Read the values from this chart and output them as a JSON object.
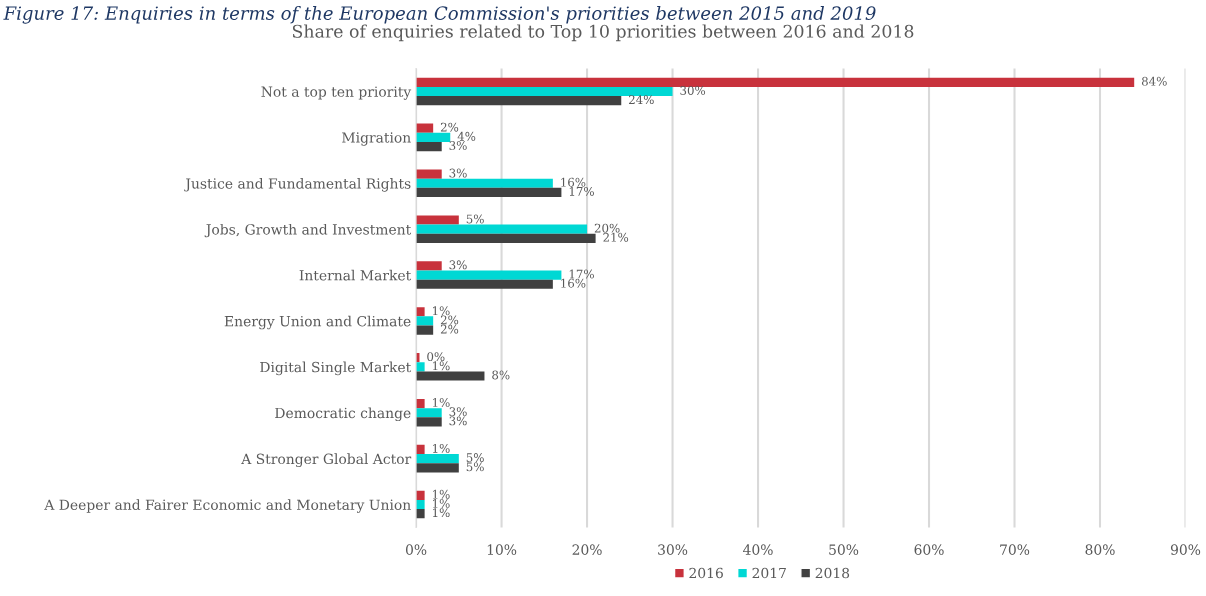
{
  "chart_data": {
    "type": "bar",
    "orientation": "horizontal",
    "title": "Share of enquiries related to Top 10 priorities between 2016 and 2018",
    "annotations": [
      "Figure 17: Enquiries in terms of the European Commission's priorities between 2015 and 2019"
    ],
    "categories": [
      "Not a top ten priority",
      "Migration",
      "Justice and Fundamental Rights",
      "Jobs, Growth and Investment",
      "Internal Market",
      "Energy Union and Climate",
      "Digital Single Market",
      "Democratic change",
      "A Stronger Global Actor",
      "A Deeper and Fairer Economic and Monetary Union"
    ],
    "series": [
      {
        "name": "2016",
        "color": "#c8323c",
        "values": [
          84,
          2,
          3,
          5,
          3,
          1,
          0.4,
          1,
          1,
          1
        ],
        "value_labels": [
          "84%",
          "2%",
          "3%",
          "5%",
          "3%",
          "1%",
          "0%",
          "1%",
          "1%",
          "1%"
        ]
      },
      {
        "name": "2017",
        "color": "#00d8d4",
        "values": [
          30,
          4,
          16,
          20,
          17,
          2,
          1,
          3,
          5,
          1
        ],
        "value_labels": [
          "30%",
          "4%",
          "16%",
          "20%",
          "17%",
          "2%",
          "1%",
          "3%",
          "5%",
          "1%"
        ]
      },
      {
        "name": "2018",
        "color": "#404040",
        "values": [
          24,
          3,
          17,
          21,
          16,
          2,
          8,
          3,
          5,
          1
        ],
        "value_labels": [
          "24%",
          "3%",
          "17%",
          "21%",
          "16%",
          "2%",
          "8%",
          "3%",
          "5%",
          "1%"
        ]
      }
    ],
    "xlim": [
      0,
      90
    ],
    "xticks": [
      {
        "value": 0,
        "label": "0%"
      },
      {
        "value": 10,
        "label": "10%"
      },
      {
        "value": 20,
        "label": "20%"
      },
      {
        "value": 30,
        "label": "30%"
      },
      {
        "value": 40,
        "label": "40%"
      },
      {
        "value": 50,
        "label": "50%"
      },
      {
        "value": 60,
        "label": "60%"
      },
      {
        "value": 70,
        "label": "70%"
      },
      {
        "value": 80,
        "label": "80%"
      },
      {
        "value": 90,
        "label": "90%"
      }
    ],
    "grid": "x",
    "legend": "bottom"
  }
}
